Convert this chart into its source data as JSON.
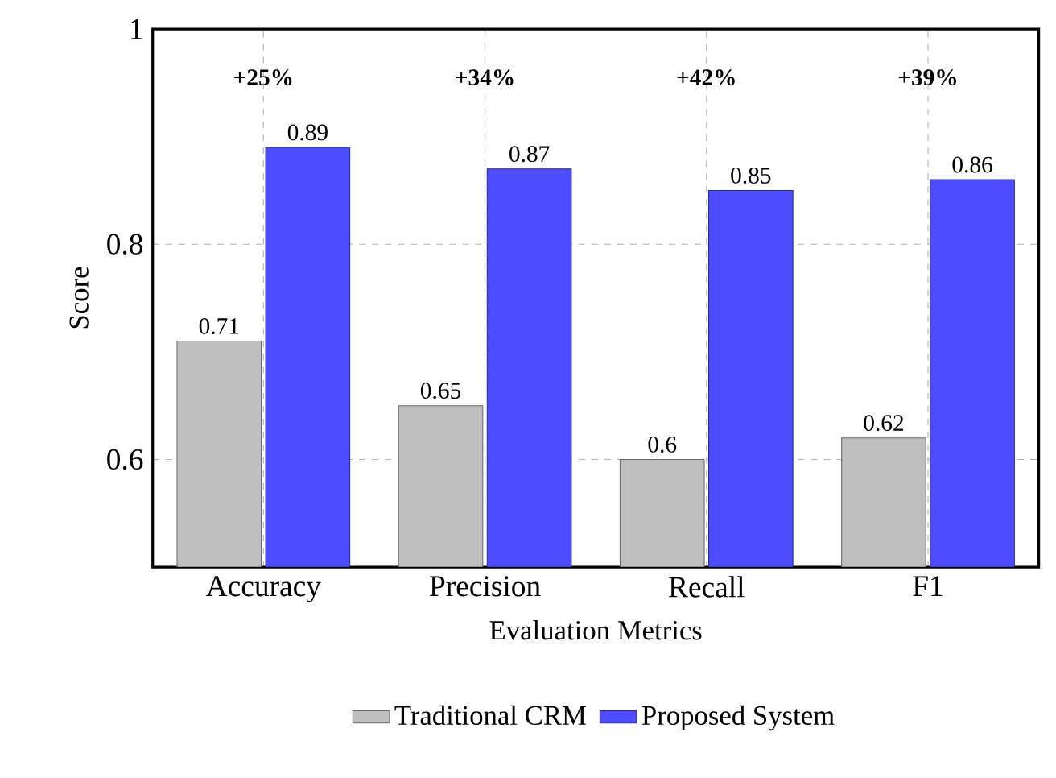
{
  "chart_data": {
    "type": "bar",
    "xlabel": "Evaluation Metrics",
    "ylabel": "Score",
    "categories": [
      "Accuracy",
      "Precision",
      "Recall",
      "F1"
    ],
    "series": [
      {
        "name": "Traditional CRM",
        "color": "#bfbfbf",
        "values": [
          0.71,
          0.65,
          0.6,
          0.62
        ]
      },
      {
        "name": "Proposed System",
        "color": "#4d4dff",
        "values": [
          0.89,
          0.87,
          0.85,
          0.86
        ]
      }
    ],
    "ylim": [
      0.5,
      1
    ],
    "yticks": [
      0.6,
      0.8,
      1
    ],
    "grid": true,
    "legend": "bottom",
    "data_labels": true,
    "annotations": [
      "**+25%**",
      "**+34%**",
      "**+42%**",
      "**+39%**"
    ]
  }
}
